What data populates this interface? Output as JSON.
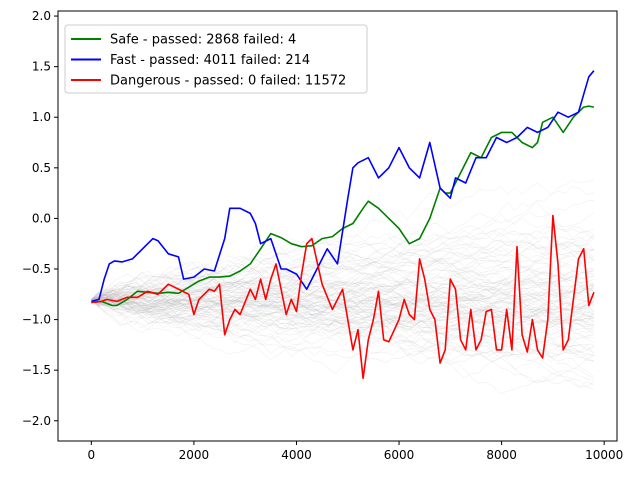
{
  "chart_data": {
    "type": "line",
    "title": "",
    "xlabel": "",
    "ylabel": "",
    "xlim": [
      -650,
      10250
    ],
    "ylim": [
      -2.2,
      2.05
    ],
    "xticks": [
      0,
      2000,
      4000,
      6000,
      8000,
      10000
    ],
    "xtick_labels": [
      "0",
      "2000",
      "4000",
      "6000",
      "8000",
      "10000"
    ],
    "yticks": [
      -2.0,
      -1.5,
      -1.0,
      -0.5,
      0.0,
      0.5,
      1.0,
      1.5,
      2.0
    ],
    "ytick_labels": [
      "−2.0",
      "−1.5",
      "−1.0",
      "−0.5",
      "0.0",
      "0.5",
      "1.0",
      "1.5",
      "2.0"
    ],
    "grid": false,
    "legend_position": "top-left",
    "background_traces": "many faint gray paths fanning out from about -0.8",
    "series": [
      {
        "name": "Safe - passed: 2868 failed: 4",
        "color": "#008000",
        "x": [
          0,
          200,
          400,
          500,
          700,
          900,
          1100,
          1300,
          1500,
          1700,
          1900,
          2100,
          2300,
          2500,
          2700,
          2900,
          3100,
          3300,
          3500,
          3700,
          3900,
          4100,
          4300,
          4500,
          4700,
          4900,
          5100,
          5300,
          5400,
          5600,
          5800,
          6000,
          6200,
          6400,
          6600,
          6800,
          6900,
          7000,
          7200,
          7400,
          7600,
          7800,
          8000,
          8200,
          8400,
          8600,
          8700,
          8800,
          9000,
          9200,
          9400,
          9600,
          9700,
          9800
        ],
        "y": [
          -0.83,
          -0.82,
          -0.86,
          -0.86,
          -0.8,
          -0.72,
          -0.73,
          -0.74,
          -0.73,
          -0.74,
          -0.68,
          -0.62,
          -0.58,
          -0.58,
          -0.57,
          -0.52,
          -0.45,
          -0.3,
          -0.15,
          -0.19,
          -0.25,
          -0.28,
          -0.27,
          -0.2,
          -0.18,
          -0.1,
          -0.05,
          0.1,
          0.17,
          0.1,
          0.0,
          -0.1,
          -0.25,
          -0.2,
          0.0,
          0.3,
          0.25,
          0.25,
          0.45,
          0.65,
          0.6,
          0.8,
          0.85,
          0.85,
          0.75,
          0.7,
          0.75,
          0.95,
          1.0,
          0.85,
          1.0,
          1.1,
          1.11,
          1.1
        ]
      },
      {
        "name": "Fast - passed: 4011 failed: 214",
        "color": "#0000ff",
        "x": [
          0,
          150,
          250,
          350,
          450,
          600,
          800,
          1000,
          1200,
          1300,
          1500,
          1700,
          1800,
          2000,
          2200,
          2400,
          2600,
          2700,
          2900,
          3100,
          3200,
          3300,
          3500,
          3700,
          3800,
          4000,
          4200,
          4400,
          4600,
          4800,
          5000,
          5100,
          5200,
          5400,
          5600,
          5800,
          6000,
          6200,
          6400,
          6600,
          6800,
          7000,
          7100,
          7300,
          7500,
          7700,
          7900,
          8100,
          8300,
          8500,
          8700,
          8900,
          9100,
          9300,
          9500,
          9700,
          9800
        ],
        "y": [
          -0.82,
          -0.8,
          -0.6,
          -0.45,
          -0.42,
          -0.43,
          -0.4,
          -0.3,
          -0.2,
          -0.22,
          -0.35,
          -0.38,
          -0.6,
          -0.58,
          -0.5,
          -0.52,
          -0.2,
          0.1,
          0.1,
          0.05,
          -0.05,
          -0.25,
          -0.2,
          -0.5,
          -0.5,
          -0.55,
          -0.7,
          -0.5,
          -0.3,
          -0.45,
          0.2,
          0.5,
          0.55,
          0.6,
          0.4,
          0.5,
          0.7,
          0.5,
          0.4,
          0.75,
          0.3,
          0.2,
          0.4,
          0.35,
          0.6,
          0.6,
          0.8,
          0.75,
          0.8,
          0.9,
          0.85,
          0.9,
          1.05,
          1.0,
          1.05,
          1.4,
          1.46
        ]
      },
      {
        "name": "Dangerous - passed: 0 failed: 11572",
        "color": "#ff0000",
        "x": [
          0,
          200,
          300,
          500,
          700,
          900,
          1100,
          1300,
          1500,
          1700,
          1900,
          2000,
          2100,
          2200,
          2300,
          2400,
          2500,
          2600,
          2700,
          2800,
          2900,
          3100,
          3200,
          3300,
          3400,
          3500,
          3600,
          3800,
          3900,
          4000,
          4100,
          4200,
          4300,
          4500,
          4700,
          4900,
          5100,
          5200,
          5300,
          5400,
          5500,
          5600,
          5700,
          5800,
          6000,
          6100,
          6200,
          6300,
          6400,
          6500,
          6600,
          6700,
          6800,
          6900,
          7000,
          7100,
          7200,
          7300,
          7400,
          7500,
          7600,
          7700,
          7800,
          7900,
          8000,
          8100,
          8200,
          8300,
          8400,
          8500,
          8600,
          8700,
          8800,
          8900,
          9000,
          9100,
          9200,
          9300,
          9400,
          9500,
          9600,
          9700,
          9800
        ],
        "y": [
          -0.83,
          -0.82,
          -0.8,
          -0.82,
          -0.78,
          -0.78,
          -0.72,
          -0.75,
          -0.65,
          -0.7,
          -0.75,
          -0.95,
          -0.8,
          -0.75,
          -0.7,
          -0.72,
          -0.65,
          -1.15,
          -1.0,
          -0.9,
          -0.95,
          -0.7,
          -0.8,
          -0.6,
          -0.8,
          -0.6,
          -0.45,
          -0.95,
          -0.8,
          -0.92,
          -0.55,
          -0.25,
          -0.2,
          -0.65,
          -0.9,
          -0.7,
          -1.3,
          -1.1,
          -1.58,
          -1.2,
          -1.0,
          -0.72,
          -1.2,
          -1.22,
          -1.0,
          -0.8,
          -0.95,
          -1.0,
          -0.4,
          -0.6,
          -0.9,
          -1.0,
          -1.43,
          -1.3,
          -0.6,
          -0.7,
          -1.2,
          -1.3,
          -0.9,
          -1.3,
          -1.2,
          -0.92,
          -0.9,
          -1.3,
          -1.3,
          -0.9,
          -1.3,
          -0.28,
          -1.15,
          -1.32,
          -1.0,
          -1.3,
          -1.38,
          -1.0,
          0.03,
          -0.45,
          -1.3,
          -1.2,
          -0.8,
          -0.4,
          -0.3,
          -0.86,
          -0.73
        ]
      }
    ]
  }
}
